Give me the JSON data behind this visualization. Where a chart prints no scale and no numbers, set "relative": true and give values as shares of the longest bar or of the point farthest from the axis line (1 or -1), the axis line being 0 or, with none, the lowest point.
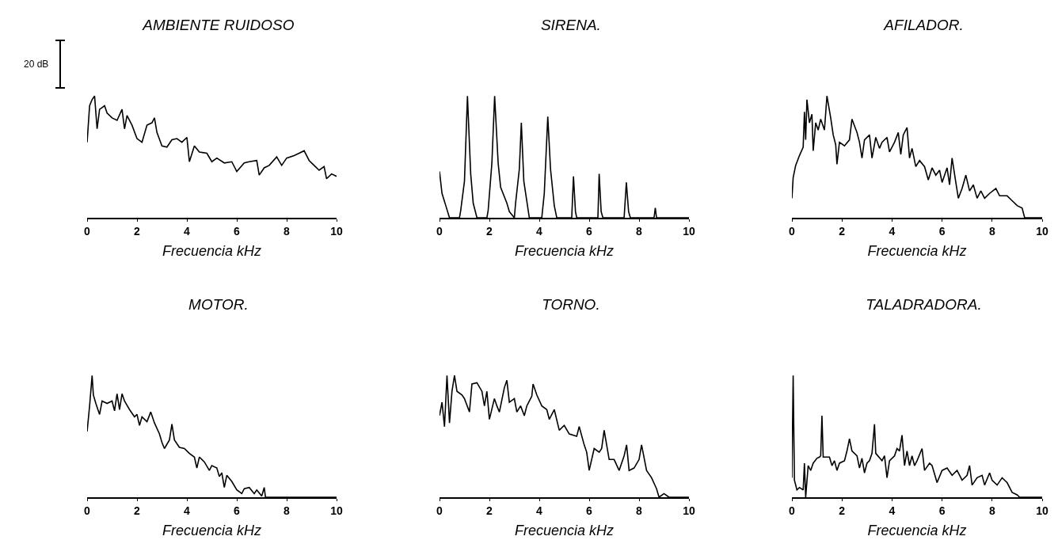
{
  "chart_data": [
    {
      "type": "line",
      "title": "AMBIENTE RUIDOSO",
      "xlabel": "Frecuencia kHz",
      "relative": true,
      "xlim": [
        0,
        10
      ],
      "xticks": [
        0,
        2,
        4,
        6,
        8,
        10
      ],
      "annotations": [
        "20 dB"
      ],
      "x": [
        0,
        0.1,
        0.2,
        0.3,
        0.4,
        0.5,
        0.7,
        0.8,
        1.0,
        1.2,
        1.4,
        1.5,
        1.6,
        1.8,
        2.0,
        2.2,
        2.4,
        2.6,
        2.7,
        2.8,
        3.0,
        3.2,
        3.4,
        3.6,
        3.8,
        4.0,
        4.1,
        4.3,
        4.5,
        4.8,
        5.0,
        5.2,
        5.5,
        5.8,
        6.0,
        6.3,
        6.5,
        6.8,
        6.9,
        7.1,
        7.3,
        7.6,
        7.8,
        8.0,
        8.3,
        8.5,
        8.7,
        8.9,
        9.1,
        9.3,
        9.5,
        9.6,
        9.8,
        10.0
      ],
      "series": [
        {
          "color": "#000000",
          "values": [
            0.62,
            0.92,
            0.97,
            1,
            0.73,
            0.89,
            0.92,
            0.86,
            0.82,
            0.8,
            0.89,
            0.73,
            0.84,
            0.76,
            0.65,
            0.62,
            0.76,
            0.78,
            0.82,
            0.7,
            0.59,
            0.58,
            0.64,
            0.65,
            0.62,
            0.66,
            0.46,
            0.59,
            0.54,
            0.53,
            0.46,
            0.49,
            0.45,
            0.46,
            0.38,
            0.45,
            0.46,
            0.47,
            0.35,
            0.41,
            0.43,
            0.5,
            0.43,
            0.49,
            0.51,
            0.53,
            0.55,
            0.47,
            0.43,
            0.39,
            0.42,
            0.32,
            0.36,
            0.34
          ]
        }
      ]
    },
    {
      "type": "line",
      "title": "SIRENA.",
      "xlabel": "Frecuencia kHz",
      "relative": true,
      "xlim": [
        0,
        10
      ],
      "xticks": [
        0,
        2,
        4,
        6,
        8,
        10
      ],
      "x": [
        0,
        0.1,
        0.25,
        0.4,
        0.8,
        0.85,
        1.0,
        1.12,
        1.25,
        1.35,
        1.5,
        1.9,
        1.95,
        2.1,
        2.21,
        2.35,
        2.45,
        2.7,
        2.8,
        3.0,
        3.05,
        3.2,
        3.28,
        3.38,
        3.6,
        4.1,
        4.2,
        4.34,
        4.45,
        4.6,
        4.7,
        5.3,
        5.37,
        5.45,
        5.5,
        6.35,
        6.4,
        6.48,
        6.55,
        7.4,
        7.49,
        7.58,
        7.65,
        8.6,
        8.65,
        8.7,
        10
      ],
      "series": [
        {
          "color": "#000000",
          "values": [
            0.38,
            0.2,
            0.1,
            0,
            0,
            0.06,
            0.3,
            1,
            0.36,
            0.12,
            0,
            0,
            0.06,
            0.45,
            1,
            0.45,
            0.25,
            0.12,
            0.05,
            0,
            0.12,
            0.4,
            0.78,
            0.3,
            0,
            0,
            0.2,
            0.83,
            0.4,
            0.1,
            0,
            0,
            0.34,
            0.05,
            0,
            0,
            0.36,
            0.05,
            0,
            0,
            0.29,
            0.05,
            0,
            0,
            0.08,
            0,
            0
          ]
        }
      ]
    },
    {
      "type": "line",
      "title": "AFILADOR.",
      "xlabel": "Frecuencia kHz",
      "relative": true,
      "xlim": [
        0,
        10
      ],
      "xticks": [
        0,
        2,
        4,
        6,
        8,
        10
      ],
      "x": [
        0,
        0.05,
        0.15,
        0.3,
        0.45,
        0.5,
        0.55,
        0.6,
        0.7,
        0.8,
        0.85,
        0.95,
        1.05,
        1.15,
        1.3,
        1.4,
        1.55,
        1.65,
        1.75,
        1.8,
        1.9,
        2.1,
        2.3,
        2.4,
        2.6,
        2.7,
        2.8,
        2.9,
        3.1,
        3.2,
        3.35,
        3.5,
        3.6,
        3.8,
        3.9,
        4.1,
        4.25,
        4.35,
        4.45,
        4.6,
        4.7,
        4.8,
        4.95,
        5.1,
        5.3,
        5.45,
        5.6,
        5.75,
        5.9,
        6.0,
        6.2,
        6.3,
        6.4,
        6.55,
        6.65,
        6.8,
        6.95,
        7.1,
        7.25,
        7.4,
        7.55,
        7.7,
        7.9,
        8.15,
        8.3,
        8.6,
        8.8,
        9.0,
        9.2,
        9.3,
        10
      ],
      "series": [
        {
          "color": "#000000",
          "values": [
            0.16,
            0.33,
            0.43,
            0.51,
            0.58,
            0.87,
            0.64,
            0.97,
            0.78,
            0.85,
            0.55,
            0.78,
            0.72,
            0.81,
            0.72,
            1,
            0.82,
            0.68,
            0.6,
            0.44,
            0.62,
            0.59,
            0.64,
            0.81,
            0.7,
            0.62,
            0.49,
            0.64,
            0.68,
            0.49,
            0.66,
            0.57,
            0.62,
            0.66,
            0.54,
            0.62,
            0.7,
            0.52,
            0.68,
            0.74,
            0.49,
            0.57,
            0.42,
            0.47,
            0.42,
            0.31,
            0.41,
            0.35,
            0.39,
            0.29,
            0.41,
            0.27,
            0.49,
            0.29,
            0.16,
            0.24,
            0.35,
            0.22,
            0.27,
            0.16,
            0.22,
            0.16,
            0.2,
            0.24,
            0.18,
            0.18,
            0.14,
            0.1,
            0.08,
            0,
            0
          ]
        }
      ]
    },
    {
      "type": "line",
      "title": "MOTOR.",
      "xlabel": "Frecuencia kHz",
      "relative": true,
      "xlim": [
        0,
        10
      ],
      "xticks": [
        0,
        2,
        4,
        6,
        8,
        10
      ],
      "x": [
        0,
        0.1,
        0.2,
        0.25,
        0.35,
        0.5,
        0.6,
        0.8,
        1.0,
        1.1,
        1.2,
        1.3,
        1.4,
        1.5,
        1.7,
        1.9,
        2.0,
        2.1,
        2.2,
        2.4,
        2.55,
        2.7,
        2.9,
        3.0,
        3.1,
        3.3,
        3.4,
        3.5,
        3.7,
        3.9,
        4.1,
        4.3,
        4.4,
        4.5,
        4.7,
        4.9,
        5.0,
        5.2,
        5.3,
        5.4,
        5.5,
        5.6,
        5.8,
        6.0,
        6.2,
        6.3,
        6.5,
        6.7,
        6.8,
        7.0,
        7.1,
        7.15,
        10
      ],
      "series": [
        {
          "color": "#000000",
          "values": [
            0.54,
            0.75,
            1,
            0.84,
            0.77,
            0.68,
            0.79,
            0.77,
            0.79,
            0.71,
            0.85,
            0.72,
            0.85,
            0.79,
            0.72,
            0.66,
            0.68,
            0.59,
            0.66,
            0.62,
            0.7,
            0.61,
            0.52,
            0.45,
            0.4,
            0.47,
            0.6,
            0.47,
            0.41,
            0.4,
            0.36,
            0.33,
            0.24,
            0.33,
            0.29,
            0.22,
            0.26,
            0.24,
            0.17,
            0.2,
            0.08,
            0.18,
            0.13,
            0.06,
            0.03,
            0.07,
            0.08,
            0.03,
            0.06,
            0.01,
            0.08,
            0,
            0
          ]
        }
      ]
    },
    {
      "type": "line",
      "title": "TORNO.",
      "xlabel": "Frecuencia kHz",
      "relative": true,
      "xlim": [
        0,
        10
      ],
      "xticks": [
        0,
        2,
        4,
        6,
        8,
        10
      ],
      "x": [
        0,
        0.1,
        0.2,
        0.3,
        0.4,
        0.5,
        0.6,
        0.7,
        0.9,
        1.0,
        1.2,
        1.3,
        1.5,
        1.7,
        1.8,
        1.9,
        2.0,
        2.2,
        2.3,
        2.4,
        2.6,
        2.7,
        2.8,
        3.0,
        3.1,
        3.25,
        3.4,
        3.5,
        3.7,
        3.75,
        3.9,
        4.1,
        4.3,
        4.4,
        4.6,
        4.8,
        5.0,
        5.2,
        5.5,
        5.6,
        5.8,
        5.9,
        6.0,
        6.2,
        6.4,
        6.5,
        6.6,
        6.8,
        7.0,
        7.2,
        7.4,
        7.5,
        7.6,
        7.8,
        8.0,
        8.1,
        8.3,
        8.5,
        8.7,
        8.8,
        9.0,
        9.2,
        10
      ],
      "series": [
        {
          "color": "#000000",
          "values": [
            0.67,
            0.78,
            0.58,
            1,
            0.61,
            0.87,
            1,
            0.87,
            0.84,
            0.81,
            0.7,
            0.93,
            0.94,
            0.87,
            0.75,
            0.87,
            0.64,
            0.81,
            0.75,
            0.7,
            0.9,
            0.96,
            0.78,
            0.81,
            0.7,
            0.75,
            0.67,
            0.75,
            0.83,
            0.93,
            0.84,
            0.75,
            0.72,
            0.64,
            0.72,
            0.55,
            0.59,
            0.52,
            0.5,
            0.58,
            0.43,
            0.37,
            0.22,
            0.4,
            0.37,
            0.4,
            0.55,
            0.31,
            0.31,
            0.22,
            0.34,
            0.43,
            0.22,
            0.24,
            0.31,
            0.43,
            0.22,
            0.16,
            0.07,
            0,
            0.03,
            0,
            0
          ]
        }
      ]
    },
    {
      "type": "line",
      "title": "TALADRADORA.",
      "xlabel": "Frecuencia kHz",
      "relative": true,
      "xlim": [
        0,
        10
      ],
      "xticks": [
        0,
        2,
        4,
        6,
        8,
        10
      ],
      "x": [
        0,
        0.05,
        0.1,
        0.2,
        0.3,
        0.45,
        0.5,
        0.55,
        0.65,
        0.75,
        0.85,
        1.0,
        1.1,
        1.15,
        1.2,
        1.25,
        1.5,
        1.6,
        1.7,
        1.8,
        1.9,
        2.1,
        2.2,
        2.3,
        2.4,
        2.6,
        2.7,
        2.8,
        2.9,
        3.0,
        3.1,
        3.2,
        3.3,
        3.35,
        3.6,
        3.7,
        3.8,
        3.9,
        4.1,
        4.2,
        4.3,
        4.4,
        4.5,
        4.6,
        4.7,
        4.8,
        4.9,
        5.0,
        5.2,
        5.3,
        5.5,
        5.6,
        5.8,
        6.0,
        6.2,
        6.4,
        6.6,
        6.8,
        7.0,
        7.1,
        7.2,
        7.4,
        7.6,
        7.7,
        7.9,
        8.0,
        8.2,
        8.4,
        8.6,
        8.8,
        9.0,
        9.1,
        10
      ],
      "series": [
        {
          "color": "#000000",
          "values": [
            0.16,
            1,
            0.14,
            0.06,
            0.08,
            0.06,
            0.28,
            0,
            0.26,
            0.22,
            0.28,
            0.32,
            0.33,
            0.34,
            0.67,
            0.33,
            0.33,
            0.26,
            0.3,
            0.22,
            0.28,
            0.3,
            0.38,
            0.48,
            0.38,
            0.34,
            0.24,
            0.32,
            0.2,
            0.28,
            0.3,
            0.36,
            0.6,
            0.36,
            0.3,
            0.34,
            0.16,
            0.3,
            0.34,
            0.4,
            0.38,
            0.51,
            0.26,
            0.38,
            0.26,
            0.34,
            0.26,
            0.3,
            0.4,
            0.22,
            0.28,
            0.26,
            0.12,
            0.22,
            0.24,
            0.18,
            0.22,
            0.14,
            0.18,
            0.26,
            0.1,
            0.16,
            0.18,
            0.1,
            0.2,
            0.14,
            0.1,
            0.16,
            0.12,
            0.04,
            0.02,
            0,
            0
          ]
        }
      ]
    }
  ]
}
